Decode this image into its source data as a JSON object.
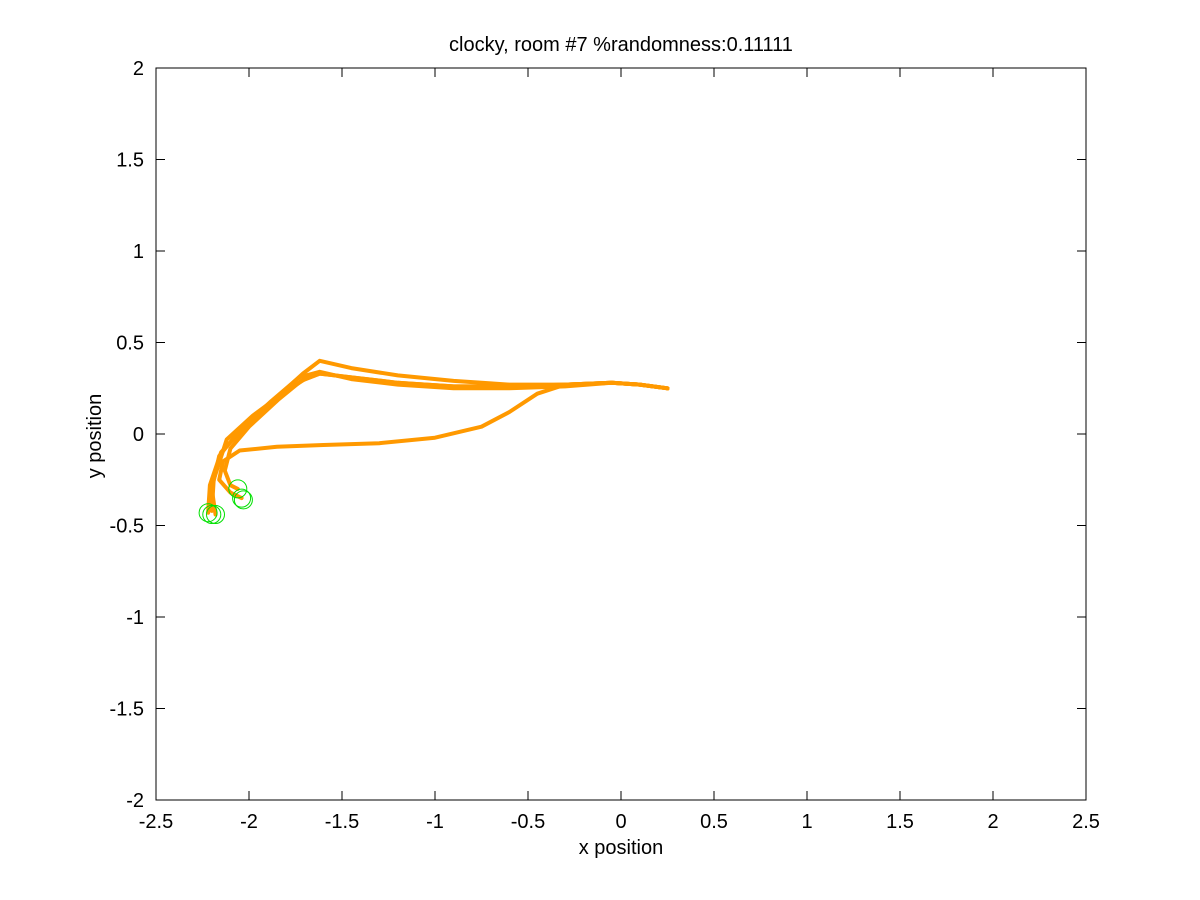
{
  "chart_data": {
    "type": "line",
    "title": "clocky, room #7 %randomness:0.11111",
    "xlabel": "x position",
    "ylabel": "y position",
    "xlim": [
      -2.5,
      2.5
    ],
    "ylim": [
      -2,
      2
    ],
    "xticks": [
      -2.5,
      -2,
      -1.5,
      -1,
      -0.5,
      0,
      0.5,
      1,
      1.5,
      2,
      2.5
    ],
    "yticks": [
      -2,
      -1.5,
      -1,
      -0.5,
      0,
      0.5,
      1,
      1.5,
      2
    ],
    "xtick_labels": [
      "-2.5",
      "-2",
      "-1.5",
      "-1",
      "-0.5",
      "0",
      "0.5",
      "1",
      "1.5",
      "2",
      "2.5"
    ],
    "ytick_labels": [
      "-2",
      "-1.5",
      "-1",
      "-0.5",
      "0",
      "0.5",
      "1",
      "1.5",
      "2"
    ],
    "grid": false,
    "legend": null,
    "series_color": "#ff9900",
    "marker_color": "#00e000",
    "series": [
      {
        "x": [
          0.25,
          0.1,
          -0.05,
          -0.3,
          -0.6,
          -0.9,
          -1.2,
          -1.45,
          -1.62,
          -1.7,
          -1.82,
          -1.98,
          -2.12,
          -2.19,
          -2.2
        ],
        "y": [
          0.25,
          0.27,
          0.28,
          0.27,
          0.26,
          0.26,
          0.28,
          0.31,
          0.33,
          0.3,
          0.22,
          0.1,
          -0.03,
          -0.25,
          -0.42
        ]
      },
      {
        "x": [
          0.25,
          0.1,
          -0.05,
          -0.3,
          -0.6,
          -0.9,
          -1.2,
          -1.45,
          -1.62,
          -1.71,
          -1.85,
          -2.03,
          -2.15,
          -2.21,
          -2.22
        ],
        "y": [
          0.25,
          0.27,
          0.28,
          0.27,
          0.27,
          0.29,
          0.32,
          0.36,
          0.4,
          0.33,
          0.2,
          0.03,
          -0.1,
          -0.28,
          -0.43
        ]
      },
      {
        "x": [
          0.25,
          0.1,
          -0.05,
          -0.3,
          -0.6,
          -0.9,
          -1.2,
          -1.45,
          -1.62,
          -1.73,
          -1.88,
          -2.05,
          -2.16,
          -2.2,
          -2.18
        ],
        "y": [
          0.25,
          0.27,
          0.28,
          0.26,
          0.25,
          0.25,
          0.27,
          0.3,
          0.34,
          0.31,
          0.18,
          0.02,
          -0.12,
          -0.3,
          -0.44
        ]
      },
      {
        "x": [
          0.25,
          0.1,
          -0.05,
          -0.3,
          -0.45,
          -0.6,
          -0.75,
          -1.0,
          -1.3,
          -1.6,
          -1.85,
          -2.05,
          -2.14,
          -2.16,
          -2.1,
          -2.04
        ],
        "y": [
          0.25,
          0.27,
          0.28,
          0.27,
          0.22,
          0.12,
          0.04,
          -0.02,
          -0.05,
          -0.06,
          -0.07,
          -0.09,
          -0.15,
          -0.25,
          -0.32,
          -0.35
        ]
      },
      {
        "x": [
          0.25,
          0.1,
          -0.05,
          -0.3,
          -0.6,
          -0.9,
          -1.2,
          -1.45,
          -1.62,
          -1.72,
          -1.84,
          -2.0,
          -2.1,
          -2.13,
          -2.1,
          -2.06
        ],
        "y": [
          0.25,
          0.27,
          0.28,
          0.27,
          0.26,
          0.26,
          0.28,
          0.31,
          0.33,
          0.29,
          0.19,
          0.04,
          -0.08,
          -0.2,
          -0.28,
          -0.3
        ]
      }
    ],
    "markers": [
      {
        "x": -2.22,
        "y": -0.43
      },
      {
        "x": -2.2,
        "y": -0.44
      },
      {
        "x": -2.18,
        "y": -0.44
      },
      {
        "x": -2.04,
        "y": -0.35
      },
      {
        "x": -2.03,
        "y": -0.36
      },
      {
        "x": -2.06,
        "y": -0.3
      }
    ]
  }
}
